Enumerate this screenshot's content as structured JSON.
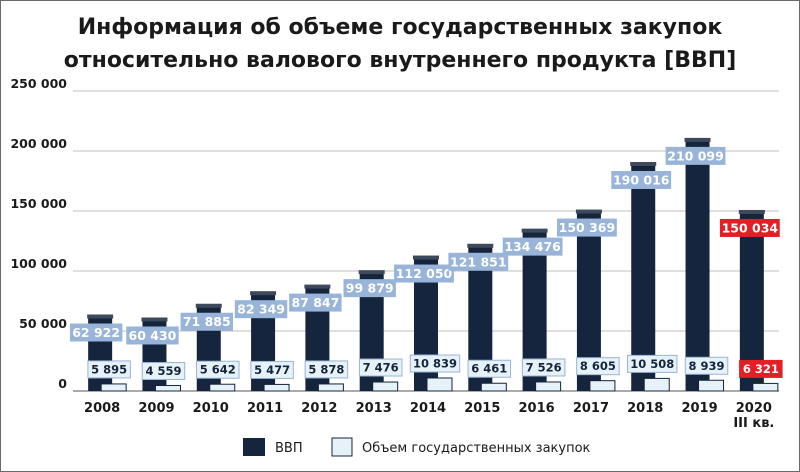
{
  "chart_data": {
    "type": "bar",
    "title_lines": [
      "Информация об объеме государственных закупок",
      "относительно валового внутреннего продукта [ВВП]"
    ],
    "categories": [
      "2008",
      "2009",
      "2010",
      "2011",
      "2012",
      "2013",
      "2014",
      "2015",
      "2016",
      "2017",
      "2018",
      "2019",
      "2020"
    ],
    "category_sublabels": [
      "",
      "",
      "",
      "",
      "",
      "",
      "",
      "",
      "",
      "",
      "",
      "",
      "III кв."
    ],
    "series": [
      {
        "name": "ВВП",
        "values": [
          62922,
          60430,
          71885,
          82349,
          87847,
          99879,
          112050,
          121851,
          134476,
          150369,
          190016,
          210099,
          150034
        ],
        "labels": [
          "62 922",
          "60 430",
          "71 885",
          "82 349",
          "87 847",
          "99 879",
          "112 050",
          "121 851",
          "134 476",
          "150 369",
          "190 016",
          "210 099",
          "150 034"
        ],
        "color": "#14253d"
      },
      {
        "name": "Объем государственных закупок",
        "values": [
          5895,
          4559,
          5642,
          5477,
          5878,
          7476,
          10839,
          6461,
          7526,
          8605,
          10508,
          8939,
          6321
        ],
        "labels": [
          "5 895",
          "4 559",
          "5 642",
          "5 477",
          "5 878",
          "7 476",
          "10 839",
          "6 461",
          "7 526",
          "8 605",
          "10 508",
          "8 939",
          "6 321"
        ],
        "color": "#e6f2f7"
      }
    ],
    "highlight_index": 12,
    "highlight_color": "#e31e24",
    "label_box_color": "#98b4d8",
    "ylim": [
      0,
      250000
    ],
    "yticks": [
      0,
      50000,
      100000,
      150000,
      200000,
      250000
    ],
    "ytick_labels": [
      "0",
      "50 000",
      "100 000",
      "150 000",
      "200 000",
      "250 000"
    ],
    "grid": true,
    "legend_position": "bottom"
  }
}
